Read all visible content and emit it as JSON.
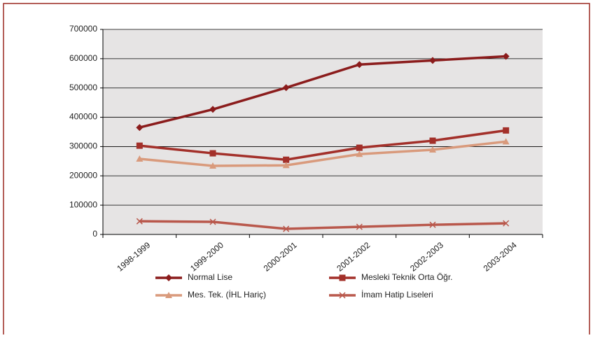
{
  "chart_data": {
    "type": "line",
    "categories": [
      "1998-1999",
      "1999-2000",
      "2000-2001",
      "2001-2002",
      "2002-2003",
      "2003-2004"
    ],
    "series": [
      {
        "name": "Normal Lise",
        "color": "#8b1c1c",
        "marker": "diamond",
        "values": [
          365000,
          427000,
          501000,
          580000,
          594000,
          608000
        ]
      },
      {
        "name": "Mesleki Teknik Orta Öğr.",
        "color": "#a3302a",
        "marker": "square",
        "values": [
          303000,
          277000,
          255000,
          296000,
          320000,
          355000
        ]
      },
      {
        "name": "Mes. Tek. (İHL Hariç)",
        "color": "#d99a7c",
        "marker": "triangle",
        "values": [
          258000,
          234000,
          236000,
          274000,
          289000,
          317000
        ]
      },
      {
        "name": "İmam Hatip Liseleri",
        "color": "#b9584c",
        "marker": "x",
        "values": [
          45000,
          43000,
          19000,
          26000,
          33000,
          38000
        ]
      }
    ],
    "ylim": [
      0,
      700000
    ],
    "yticks": [
      0,
      100000,
      200000,
      300000,
      400000,
      500000,
      600000,
      700000
    ],
    "grid": true
  }
}
